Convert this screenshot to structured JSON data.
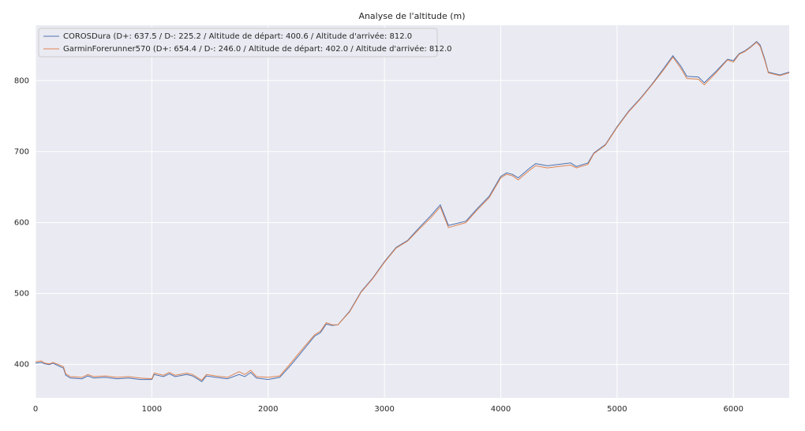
{
  "chart_data": {
    "type": "line",
    "title": "Analyse de l'altitude (m)",
    "x": [
      0,
      50,
      80,
      120,
      150,
      200,
      240,
      260,
      300,
      400,
      450,
      500,
      600,
      700,
      800,
      900,
      1000,
      1020,
      1100,
      1150,
      1200,
      1300,
      1350,
      1400,
      1430,
      1470,
      1550,
      1650,
      1750,
      1800,
      1850,
      1900,
      2000,
      2100,
      2200,
      2300,
      2400,
      2450,
      2500,
      2550,
      2600,
      2700,
      2800,
      2900,
      3000,
      3100,
      3200,
      3300,
      3400,
      3480,
      3550,
      3700,
      3800,
      3900,
      4000,
      4050,
      4100,
      4150,
      4250,
      4300,
      4400,
      4500,
      4600,
      4650,
      4750,
      4800,
      4900,
      5000,
      5100,
      5200,
      5300,
      5400,
      5480,
      5550,
      5600,
      5700,
      5750,
      5850,
      5950,
      6000,
      6050,
      6100,
      6150,
      6200,
      6230,
      6270,
      6300,
      6400,
      6480
    ],
    "series": [
      {
        "name": "COROSDura (D+: 637.5 / D-: 225.2 / Altitude de départ: 400.6 / Altitude d'arrivée: 812.0",
        "color": "#4c72b0",
        "values": [
          402,
          403,
          401,
          400,
          402,
          398,
          395,
          385,
          381,
          380,
          384,
          381,
          382,
          380,
          381,
          379,
          379,
          386,
          383,
          387,
          383,
          386,
          384,
          379,
          376,
          384,
          382,
          380,
          386,
          383,
          389,
          381,
          379,
          382,
          400,
          420,
          440,
          445,
          457,
          455,
          456,
          475,
          503,
          522,
          545,
          565,
          575,
          593,
          610,
          625,
          596,
          602,
          620,
          637,
          665,
          670,
          668,
          663,
          677,
          683,
          680,
          682,
          684,
          679,
          684,
          698,
          710,
          735,
          757,
          775,
          795,
          817,
          835,
          820,
          806,
          805,
          797,
          813,
          830,
          828,
          838,
          842,
          848,
          855,
          850,
          830,
          812,
          808,
          812
        ]
      },
      {
        "name": "GarminForerunner570 (D+: 654.4 / D-: 246.0 / Altitude de départ: 402.0 / Altitude d'arrivée: 812.0",
        "color": "#dd8452",
        "values": [
          404,
          405,
          402,
          401,
          403,
          400,
          397,
          387,
          383,
          382,
          386,
          383,
          384,
          382,
          383,
          381,
          380,
          388,
          385,
          389,
          385,
          388,
          386,
          381,
          378,
          386,
          384,
          382,
          390,
          386,
          392,
          383,
          382,
          384,
          403,
          423,
          442,
          447,
          459,
          456,
          456,
          474,
          502,
          521,
          544,
          564,
          574,
          591,
          607,
          622,
          593,
          600,
          618,
          635,
          663,
          668,
          666,
          660,
          674,
          680,
          677,
          679,
          681,
          677,
          682,
          697,
          709,
          734,
          756,
          774,
          794,
          815,
          833,
          817,
          803,
          802,
          794,
          811,
          829,
          826,
          837,
          841,
          847,
          854,
          848,
          828,
          811,
          807,
          811
        ]
      }
    ],
    "xlim": [
      0,
      6480
    ],
    "ylim": [
      353,
      878
    ],
    "xticks": [
      0,
      1000,
      2000,
      3000,
      4000,
      5000,
      6000
    ],
    "yticks": [
      400,
      500,
      600,
      700,
      800
    ],
    "grid": true,
    "legend": "upper left"
  }
}
